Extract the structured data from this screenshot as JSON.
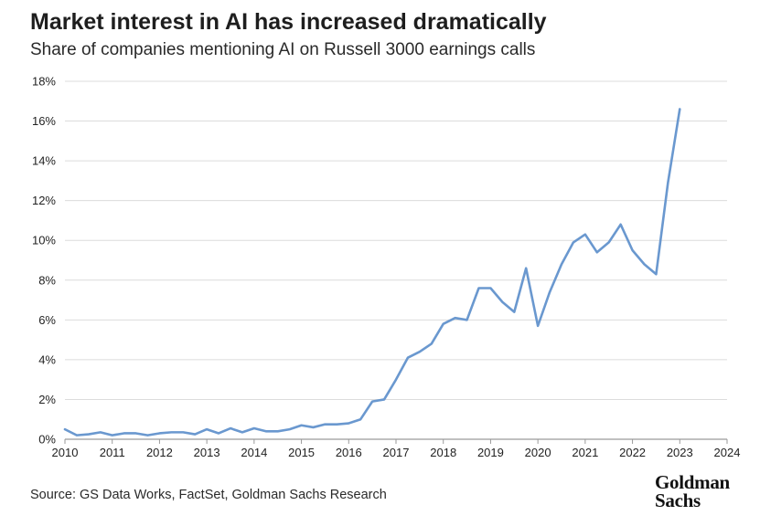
{
  "title": "Market interest in AI has increased dramatically",
  "subtitle": "Share of companies mentioning AI on Russell 3000 earnings calls",
  "source": "Source: GS Data Works, FactSet, Goldman Sachs Research",
  "logo": {
    "line1": "Goldman",
    "line2": "Sachs"
  },
  "chart_data": {
    "type": "line",
    "title": "Market interest in AI has increased dramatically",
    "subtitle": "Share of companies mentioning AI on Russell 3000 earnings calls",
    "xlabel": "",
    "ylabel": "",
    "xlim": [
      2010,
      2024
    ],
    "ylim": [
      0,
      18
    ],
    "y_unit": "%",
    "grid": true,
    "line_color": "#6a98cf",
    "x_ticks": [
      "2010",
      "2011",
      "2012",
      "2013",
      "2014",
      "2015",
      "2016",
      "2017",
      "2018",
      "2019",
      "2020",
      "2021",
      "2022",
      "2023",
      "2024"
    ],
    "y_ticks": [
      "0%",
      "2%",
      "4%",
      "6%",
      "8%",
      "10%",
      "12%",
      "14%",
      "16%",
      "18%"
    ],
    "series": [
      {
        "x": [
          2010.0,
          2010.25,
          2010.5,
          2010.75,
          2011.0,
          2011.25,
          2011.5,
          2011.75,
          2012.0,
          2012.25,
          2012.5,
          2012.75,
          2013.0,
          2013.25,
          2013.5,
          2013.75,
          2014.0,
          2014.25,
          2014.5,
          2014.75,
          2015.0,
          2015.25,
          2015.5,
          2015.75,
          2016.0,
          2016.25,
          2016.5,
          2016.75,
          2017.0,
          2017.25,
          2017.5,
          2017.75,
          2018.0,
          2018.25,
          2018.5,
          2018.75,
          2019.0,
          2019.25,
          2019.5,
          2019.75,
          2020.0,
          2020.25,
          2020.5,
          2020.75,
          2021.0,
          2021.25,
          2021.5,
          2021.75,
          2022.0,
          2022.25,
          2022.5,
          2022.75,
          2023.0
        ],
        "y": [
          0.5,
          0.2,
          0.25,
          0.35,
          0.2,
          0.3,
          0.3,
          0.2,
          0.3,
          0.35,
          0.35,
          0.25,
          0.5,
          0.3,
          0.55,
          0.35,
          0.55,
          0.4,
          0.4,
          0.5,
          0.7,
          0.6,
          0.75,
          0.75,
          0.8,
          1.0,
          1.9,
          2.0,
          3.0,
          4.1,
          4.4,
          4.8,
          5.8,
          6.1,
          6.0,
          7.6,
          7.6,
          6.9,
          6.4,
          8.6,
          5.7,
          7.4,
          8.8,
          9.9,
          10.3,
          9.4,
          9.9,
          10.8,
          9.5,
          8.8,
          8.3,
          12.9,
          16.6
        ]
      }
    ]
  }
}
